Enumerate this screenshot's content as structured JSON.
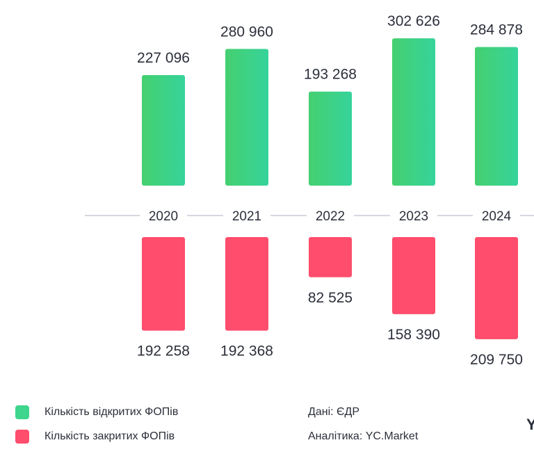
{
  "chart_data": {
    "type": "bar",
    "categories": [
      "2020",
      "2021",
      "2022",
      "2023",
      "2024"
    ],
    "series": [
      {
        "name": "Кількість відкритих ФОПів",
        "values": [
          227096,
          280960,
          193268,
          302626,
          284878
        ],
        "value_labels": [
          "227 096",
          "280 960",
          "193 268",
          "302 626",
          "284 878"
        ],
        "color": "#3dd68c",
        "direction": "up"
      },
      {
        "name": "Кількість закритих ФОПів",
        "values": [
          192258,
          192368,
          82525,
          158390,
          209750
        ],
        "value_labels": [
          "192 258",
          "192 368",
          "82 525",
          "158 390",
          "209 750"
        ],
        "color": "#ff4d6d",
        "direction": "down"
      }
    ],
    "grid": false,
    "legend_placement": "bottom-left"
  },
  "legend": {
    "items": [
      {
        "label": "Кількість відкритих ФОПів",
        "color": "#3dd68c"
      },
      {
        "label": "Кількість закритих ФОПів",
        "color": "#ff4d6d"
      }
    ]
  },
  "credits": {
    "data_source": "Дані: ЄДР",
    "analytics": "Аналітика: YC.Market"
  },
  "edge_mark": "Y",
  "colors": {
    "axis_line": "#c9ccd6",
    "text": "#2b2f3a"
  }
}
